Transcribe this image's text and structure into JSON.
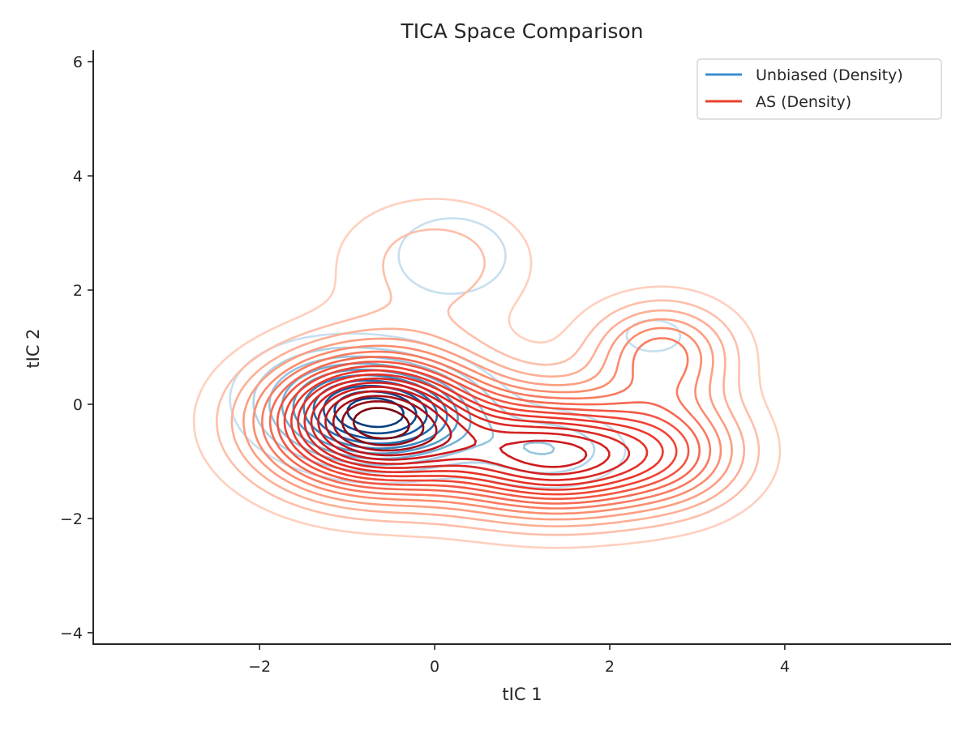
{
  "chart_data": {
    "type": "contour",
    "title": "TICA Space Comparison",
    "xlabel": "tIC 1",
    "ylabel": "tIC 2",
    "xlim": [
      -3.9,
      5.9
    ],
    "ylim": [
      -4.2,
      6.2
    ],
    "xticks": [
      {
        "value": -2,
        "label": "−2"
      },
      {
        "value": 0,
        "label": "0"
      },
      {
        "value": 2,
        "label": "2"
      },
      {
        "value": 4,
        "label": "4"
      }
    ],
    "yticks": [
      {
        "value": -4,
        "label": "−4"
      },
      {
        "value": -2,
        "label": "−2"
      },
      {
        "value": 0,
        "label": "0"
      },
      {
        "value": 2,
        "label": "2"
      },
      {
        "value": 4,
        "label": "4"
      },
      {
        "value": 6,
        "label": "6"
      }
    ],
    "grid": false,
    "legend_position": "top-right",
    "series": [
      {
        "name": "Unbiased (Density)",
        "colormap": "Blues",
        "legend_color": "#3a8fd1",
        "levels": 10,
        "components": [
          {
            "x": -0.6,
            "y": -0.2,
            "sx": 0.7,
            "sy": 0.55,
            "w": 1.0
          },
          {
            "x": 0.2,
            "y": 2.6,
            "sx": 0.65,
            "sy": 0.7,
            "w": 0.16
          },
          {
            "x": 2.5,
            "y": 1.2,
            "sx": 0.45,
            "sy": 0.4,
            "w": 0.13
          },
          {
            "x": 1.3,
            "y": -0.8,
            "sx": 0.6,
            "sy": 0.45,
            "w": 0.3
          },
          {
            "x": -1.2,
            "y": 0.3,
            "sx": 0.7,
            "sy": 0.6,
            "w": 0.25
          }
        ]
      },
      {
        "name": "AS (Density)",
        "colormap": "Reds",
        "legend_color": "#e8412c",
        "levels": 18,
        "components": [
          {
            "x": -0.7,
            "y": -0.3,
            "sx": 0.85,
            "sy": 0.8,
            "w": 1.0
          },
          {
            "x": 1.4,
            "y": -0.9,
            "sx": 0.9,
            "sy": 0.7,
            "w": 0.75
          },
          {
            "x": 2.6,
            "y": 0.9,
            "sx": 0.55,
            "sy": 0.6,
            "w": 0.35
          },
          {
            "x": 0.0,
            "y": 2.5,
            "sx": 0.8,
            "sy": 0.8,
            "w": 0.14
          },
          {
            "x": 2.8,
            "y": -0.8,
            "sx": 0.6,
            "sy": 0.7,
            "w": 0.25
          }
        ]
      }
    ]
  }
}
